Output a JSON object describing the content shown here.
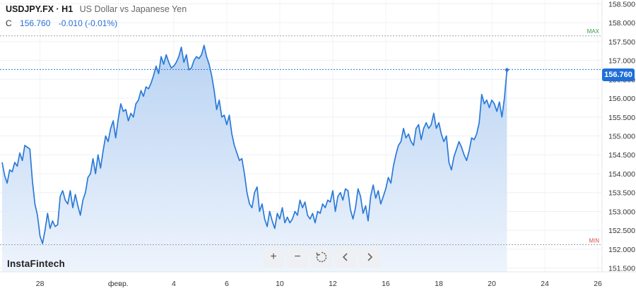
{
  "header": {
    "symbol": "USDJPY.FX · H1",
    "description": "US Dollar vs Japanese Yen",
    "close_label": "C",
    "close_value": "156.760",
    "change": "-0.010 (-0.01%)"
  },
  "brand": {
    "logo_text": "InstaFintech"
  },
  "toolbar": {
    "zoom_in": "+",
    "zoom_out": "−",
    "reset": "reset-icon",
    "back": "chevron-left-icon",
    "forward": "chevron-right-icon"
  },
  "colors": {
    "line": "#2a7ad8",
    "fill_top": "#b9d3f3",
    "fill_bottom": "#eef4fc",
    "tag": "#1f6fd8",
    "max_color": "#3a9a4a",
    "min_color": "#d9534f"
  },
  "chart_data": {
    "type": "area",
    "title": "USDJPY.FX · H1",
    "subtitle": "US Dollar vs Japanese Yen",
    "ylim": [
      151.4,
      158.6
    ],
    "y_ticks": [
      151.5,
      152.0,
      152.5,
      153.0,
      153.5,
      154.0,
      154.5,
      155.0,
      155.5,
      156.0,
      156.5,
      157.0,
      157.5,
      158.0,
      158.5
    ],
    "y_tick_labels": [
      "151.500",
      "152.000",
      "152.500",
      "153.000",
      "153.500",
      "154.000",
      "154.500",
      "155.000",
      "155.500",
      "156.000",
      "156.500",
      "157.000",
      "157.500",
      "158.000",
      "158.500"
    ],
    "xlim": [
      0,
      236
    ],
    "x_ticks": [
      {
        "x": 15,
        "label": "28"
      },
      {
        "x": 46,
        "label": "февр."
      },
      {
        "x": 68,
        "label": "4"
      },
      {
        "x": 89,
        "label": "6"
      },
      {
        "x": 110,
        "label": "10"
      },
      {
        "x": 131,
        "label": "12"
      },
      {
        "x": 152,
        "label": "16"
      },
      {
        "x": 173,
        "label": "18"
      },
      {
        "x": 194,
        "label": "20"
      },
      {
        "x": 215,
        "label": "24"
      },
      {
        "x": 236,
        "label": "26"
      }
    ],
    "current_price": 156.76,
    "current_price_label": "156.760",
    "max": {
      "value": 157.65,
      "label": "MAX"
    },
    "min": {
      "value": 152.12,
      "label": "MIN"
    },
    "grid": true,
    "series": [
      {
        "values": [
          154.3,
          153.95,
          153.75,
          154.1,
          154.05,
          154.3,
          154.2,
          154.55,
          154.35,
          154.75,
          154.7,
          154.65,
          153.8,
          153.2,
          152.9,
          152.35,
          152.15,
          152.5,
          152.95,
          152.55,
          152.75,
          152.6,
          152.65,
          153.4,
          153.55,
          153.3,
          153.2,
          153.55,
          153.1,
          153.45,
          153.15,
          152.9,
          153.3,
          153.5,
          153.9,
          154.0,
          154.4,
          154.0,
          154.5,
          154.15,
          154.6,
          155.0,
          154.85,
          155.2,
          155.4,
          154.95,
          155.45,
          155.85,
          155.65,
          155.7,
          155.4,
          155.6,
          155.5,
          155.85,
          155.95,
          156.2,
          156.05,
          156.3,
          156.25,
          156.4,
          156.6,
          156.85,
          156.65,
          157.1,
          156.9,
          157.15,
          156.95,
          156.8,
          156.85,
          156.95,
          157.1,
          157.35,
          156.95,
          157.15,
          156.75,
          156.8,
          157.0,
          157.1,
          157.05,
          157.15,
          157.4,
          157.1,
          156.9,
          156.6,
          156.2,
          155.7,
          155.95,
          155.5,
          155.55,
          155.3,
          155.55,
          155.05,
          154.75,
          154.55,
          154.35,
          154.4,
          154.0,
          153.5,
          153.2,
          153.1,
          153.5,
          153.65,
          153.0,
          153.2,
          152.8,
          152.6,
          153.0,
          152.75,
          152.55,
          152.95,
          152.8,
          153.1,
          152.7,
          152.85,
          152.7,
          152.8,
          153.0,
          152.9,
          153.3,
          153.1,
          153.25,
          152.9,
          152.8,
          152.95,
          152.7,
          153.0,
          152.95,
          153.2,
          153.1,
          153.3,
          153.25,
          153.55,
          153.0,
          153.4,
          153.5,
          153.3,
          153.6,
          153.55,
          153.05,
          152.8,
          153.1,
          153.6,
          153.4,
          152.95,
          153.15,
          152.75,
          153.4,
          153.7,
          153.35,
          153.55,
          153.2,
          153.4,
          153.6,
          153.9,
          153.75,
          154.2,
          154.5,
          154.75,
          154.85,
          155.2,
          154.95,
          155.05,
          154.85,
          154.75,
          155.2,
          155.3,
          154.9,
          155.2,
          155.35,
          155.2,
          155.3,
          155.6,
          155.2,
          155.35,
          155.05,
          154.85,
          155.0,
          154.3,
          154.1,
          154.45,
          154.65,
          154.85,
          154.7,
          154.5,
          154.35,
          154.6,
          154.95,
          154.9,
          155.05,
          155.35,
          156.1,
          155.85,
          155.95,
          155.75,
          155.95,
          155.85,
          155.65,
          155.9,
          155.5,
          156.0,
          156.75
        ]
      }
    ]
  }
}
